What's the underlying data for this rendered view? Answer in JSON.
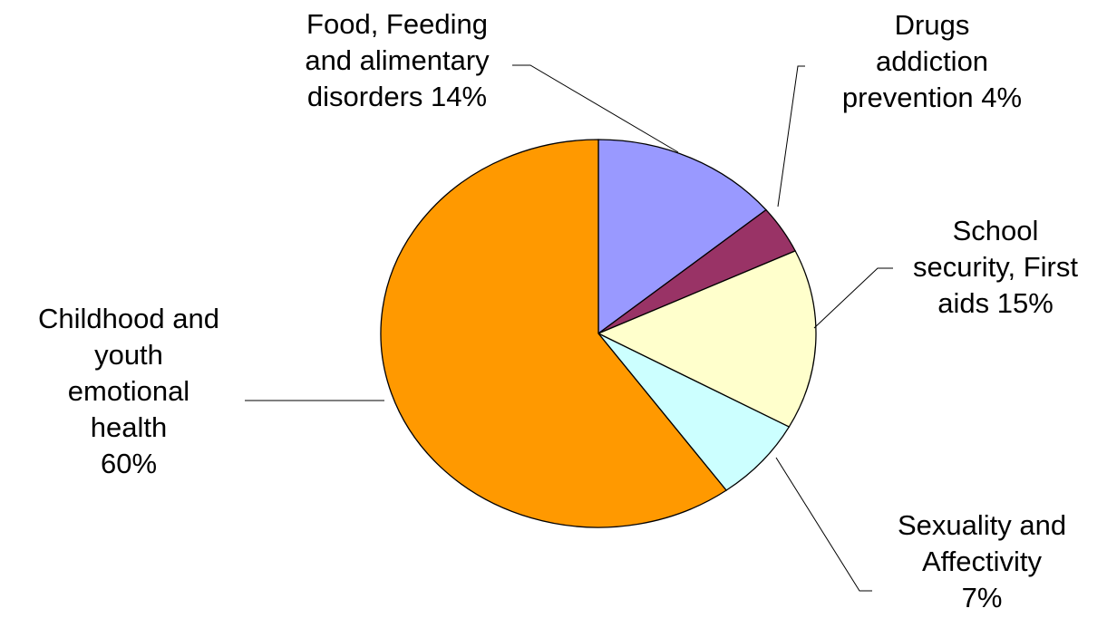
{
  "chart_data": {
    "type": "pie",
    "title": "",
    "slices": [
      {
        "lines": [
          "Food, Feeding",
          "and alimentary",
          "disorders 14%"
        ],
        "value": 14,
        "color": "#9999ff"
      },
      {
        "lines": [
          "Drugs",
          "addiction",
          "prevention 4%"
        ],
        "value": 4,
        "color": "#993366"
      },
      {
        "lines": [
          "School",
          "security, First",
          "aids 15%"
        ],
        "value": 15,
        "color": "#ffffcc"
      },
      {
        "lines": [
          "Sexuality and",
          "Affectivity",
          "7%"
        ],
        "value": 7,
        "color": "#ccffff"
      },
      {
        "lines": [
          "Childhood and",
          "youth",
          "emotional",
          "health",
          "60%"
        ],
        "value": 60,
        "color": "#ff9900"
      }
    ]
  }
}
